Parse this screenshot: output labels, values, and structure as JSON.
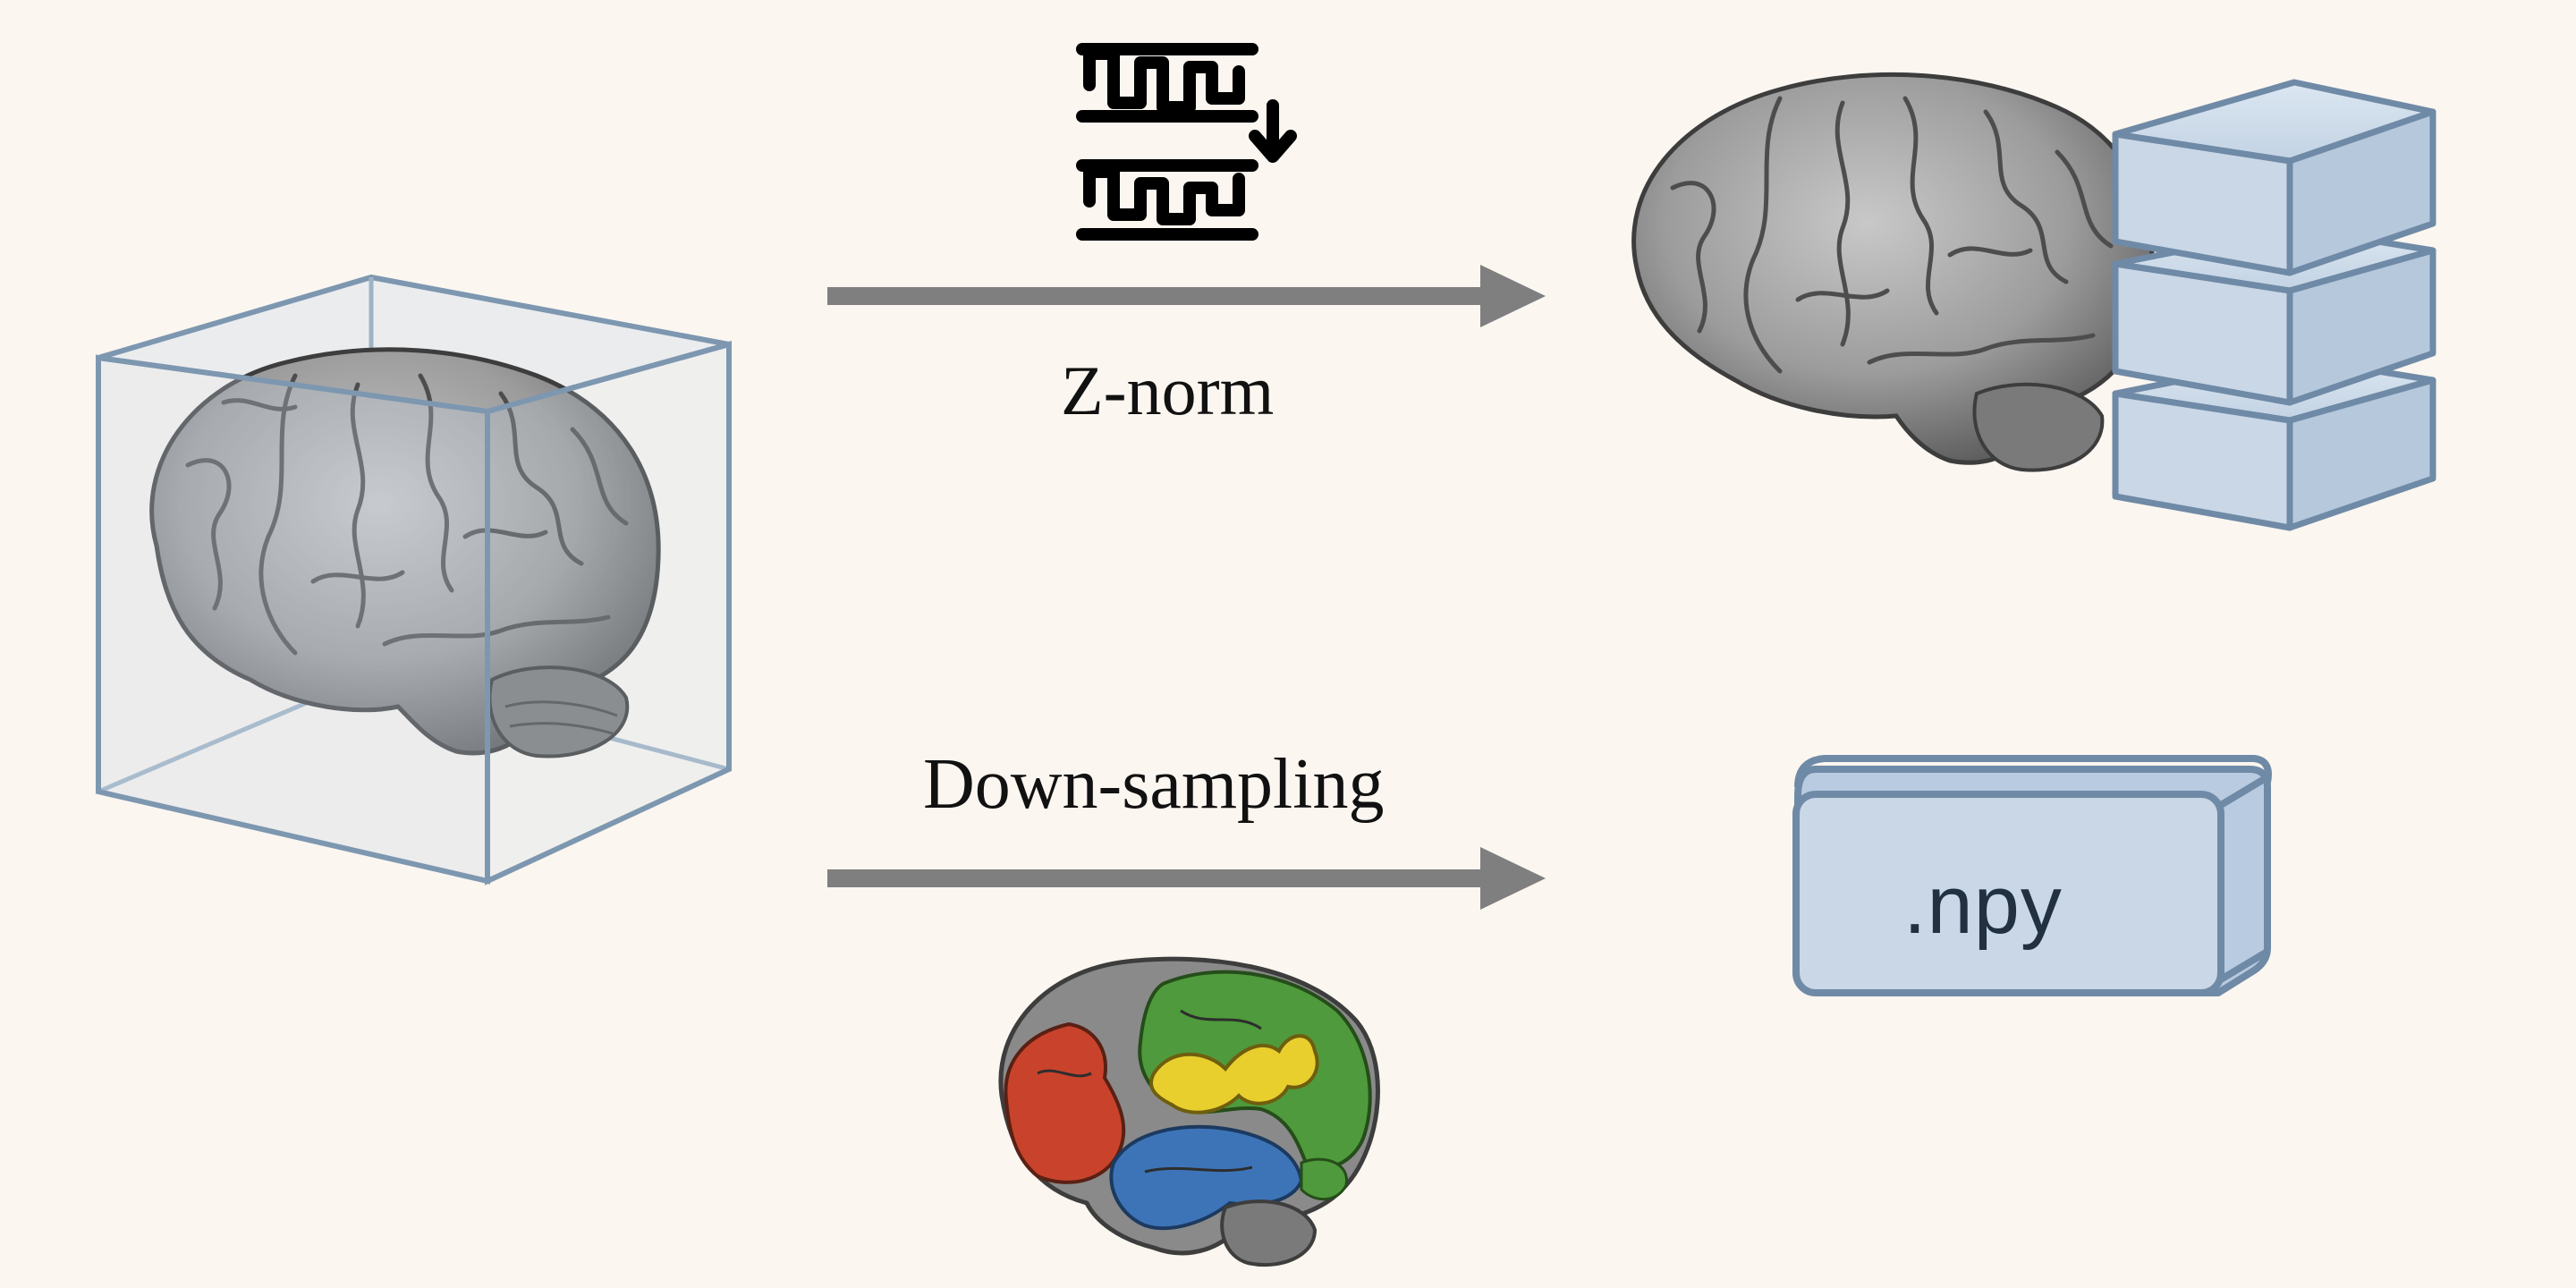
{
  "steps": {
    "top_label": "Z-norm",
    "bottom_label": "Down-sampling"
  },
  "output_file": {
    "label": ".npy"
  },
  "icons": {
    "input": "brain-in-box-icon",
    "normalize": "signal-normalization-icon",
    "normalized_output": "brain-with-stacked-blocks-icon",
    "parcellation": "parcellated-brain-icon",
    "file": "npy-file-block-icon"
  },
  "colors": {
    "background": "#fbf6f0",
    "arrow": "#7f7f7f",
    "box_stroke": "#6f8aa6",
    "box_fill": "#c9d7e6",
    "brain": "#9a9a9a",
    "region_red": "#c9432c",
    "region_green": "#4f9a3c",
    "region_yellow": "#e8cf2e",
    "region_blue": "#3d74b8"
  }
}
